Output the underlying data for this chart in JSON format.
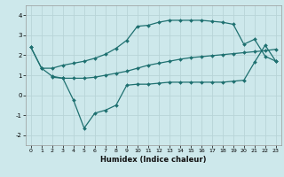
{
  "xlabel": "Humidex (Indice chaleur)",
  "bg_color": "#cde8eb",
  "grid_color": "#b8d4d7",
  "line_color": "#1e7070",
  "xlim": [
    -0.5,
    23.5
  ],
  "ylim": [
    -2.5,
    4.5
  ],
  "xticks": [
    0,
    1,
    2,
    3,
    4,
    5,
    6,
    7,
    8,
    9,
    10,
    11,
    12,
    13,
    14,
    15,
    16,
    17,
    18,
    19,
    20,
    21,
    22,
    23
  ],
  "yticks": [
    -2,
    -1,
    0,
    1,
    2,
    3,
    4
  ],
  "line1_x": [
    0,
    1,
    2,
    3,
    4,
    5,
    6,
    7,
    8,
    9,
    10,
    11,
    12,
    13,
    14,
    15,
    16,
    17,
    18,
    19,
    20,
    21,
    22,
    23
  ],
  "line1_y": [
    2.4,
    1.35,
    0.95,
    0.85,
    0.85,
    0.85,
    0.9,
    1.0,
    1.1,
    1.2,
    1.35,
    1.5,
    1.6,
    1.7,
    1.8,
    1.88,
    1.93,
    1.98,
    2.03,
    2.08,
    2.13,
    2.18,
    2.23,
    2.3
  ],
  "line2_x": [
    0,
    1,
    2,
    3,
    4,
    5,
    6,
    7,
    8,
    9,
    10,
    11,
    12,
    13,
    14,
    15,
    16,
    17,
    18,
    19,
    20,
    21,
    22,
    23
  ],
  "line2_y": [
    2.4,
    1.35,
    1.35,
    1.5,
    1.6,
    1.7,
    1.85,
    2.05,
    2.35,
    2.75,
    3.45,
    3.5,
    3.65,
    3.75,
    3.75,
    3.75,
    3.75,
    3.7,
    3.65,
    3.55,
    2.55,
    2.8,
    1.95,
    1.7
  ],
  "line3_x": [
    2,
    3,
    4,
    5,
    6,
    7,
    8,
    9,
    10,
    11,
    12,
    13,
    14,
    15,
    16,
    17,
    18,
    19,
    20,
    21,
    22,
    23
  ],
  "line3_y": [
    0.9,
    0.85,
    -0.25,
    -1.65,
    -0.9,
    -0.75,
    -0.5,
    0.5,
    0.55,
    0.55,
    0.6,
    0.65,
    0.65,
    0.65,
    0.65,
    0.65,
    0.65,
    0.7,
    0.75,
    1.65,
    2.5,
    1.7
  ],
  "marker": "D",
  "markersize": 2.0,
  "linewidth": 0.9
}
